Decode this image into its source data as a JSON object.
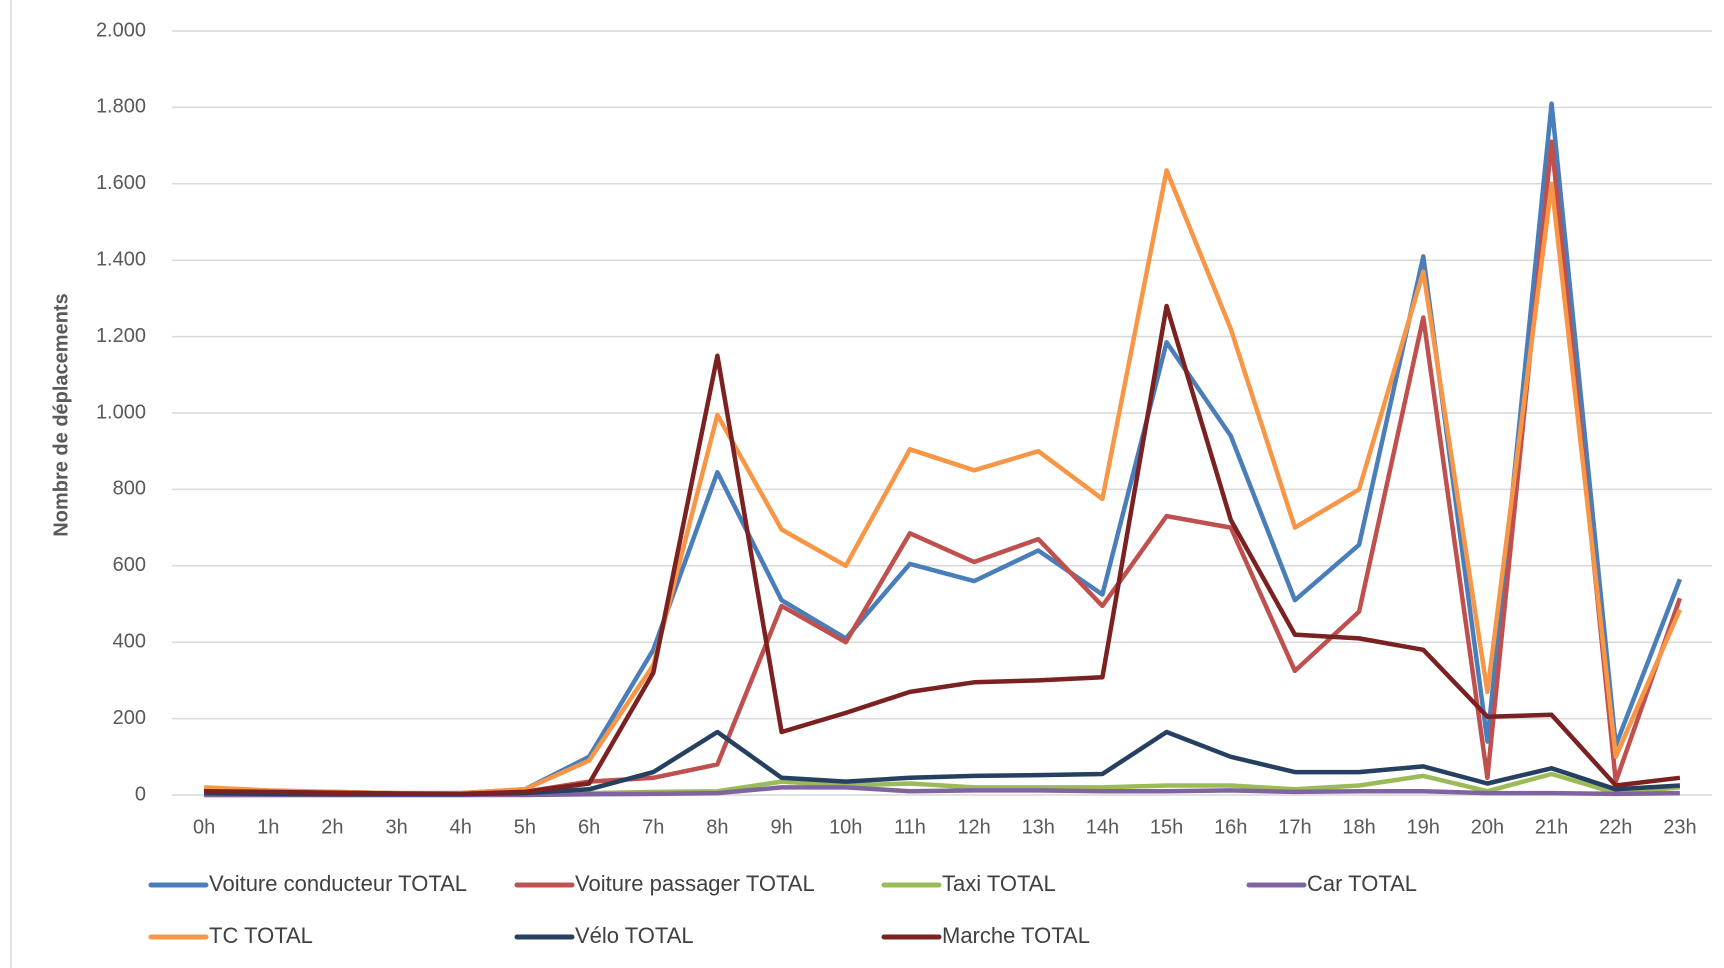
{
  "chart_data": {
    "type": "line",
    "y_label": "Nombre de déplacements",
    "categories": [
      "0h",
      "1h",
      "2h",
      "3h",
      "4h",
      "5h",
      "6h",
      "7h",
      "8h",
      "9h",
      "10h",
      "11h",
      "12h",
      "13h",
      "14h",
      "15h",
      "16h",
      "17h",
      "18h",
      "19h",
      "20h",
      "21h",
      "22h",
      "23h"
    ],
    "ylim": [
      0,
      2000
    ],
    "yticks": [
      0,
      200,
      400,
      600,
      800,
      {
        "value": 1000,
        "label": "1.000"
      },
      {
        "value": 1200,
        "label": "1.200"
      },
      {
        "value": 1400,
        "label": "1.400"
      },
      {
        "value": 1600,
        "label": "1.600"
      },
      {
        "value": 1800,
        "label": "1.800"
      },
      {
        "value": 2000,
        "label": "2.000"
      }
    ],
    "grid": true,
    "legend": "bottom",
    "series": [
      {
        "name": "Voiture conducteur TOTAL",
        "color": "#4a7ebb",
        "values": [
          15,
          10,
          8,
          5,
          5,
          15,
          100,
          380,
          845,
          510,
          410,
          605,
          560,
          640,
          525,
          1185,
          940,
          510,
          655,
          1410,
          140,
          1810,
          130,
          565
        ]
      },
      {
        "name": "Voiture passager TOTAL",
        "color": "#c0504d",
        "values": [
          10,
          8,
          5,
          3,
          3,
          8,
          35,
          45,
          80,
          495,
          400,
          685,
          610,
          670,
          495,
          730,
          700,
          325,
          480,
          1250,
          45,
          1710,
          35,
          515
        ]
      },
      {
        "name": "Taxi  TOTAL",
        "color": "#9bbb59",
        "values": [
          0,
          0,
          0,
          0,
          0,
          2,
          5,
          8,
          10,
          35,
          25,
          30,
          20,
          20,
          20,
          25,
          25,
          15,
          25,
          50,
          10,
          55,
          5,
          20
        ]
      },
      {
        "name": "Car  TOTAL",
        "color": "#8064a2",
        "values": [
          0,
          0,
          0,
          0,
          0,
          0,
          2,
          3,
          5,
          20,
          20,
          10,
          12,
          12,
          10,
          10,
          12,
          8,
          10,
          10,
          5,
          5,
          3,
          5
        ]
      },
      {
        "name": "TC TOTAL",
        "color": "#f79646",
        "values": [
          20,
          12,
          8,
          5,
          5,
          15,
          90,
          340,
          995,
          695,
          600,
          905,
          850,
          900,
          775,
          1635,
          1220,
          700,
          800,
          1370,
          270,
          1600,
          100,
          485
        ]
      },
      {
        "name": "Vélo TOTAL",
        "color": "#254061",
        "values": [
          5,
          3,
          2,
          2,
          2,
          5,
          15,
          60,
          165,
          45,
          35,
          45,
          50,
          52,
          55,
          165,
          100,
          60,
          60,
          75,
          30,
          70,
          15,
          25
        ]
      },
      {
        "name": "Marche TOTAL",
        "color": "#7b2121",
        "values": [
          10,
          8,
          6,
          4,
          3,
          8,
          30,
          320,
          1150,
          165,
          215,
          270,
          295,
          300,
          308,
          1280,
          720,
          420,
          410,
          380,
          205,
          210,
          25,
          45
        ]
      }
    ]
  }
}
